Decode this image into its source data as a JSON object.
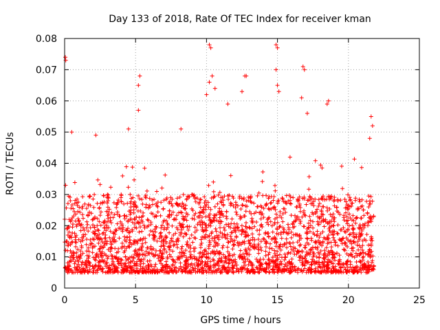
{
  "chart_data": {
    "type": "scatter",
    "title": "Day 133 of 2018, Rate Of TEC Index for receiver kman",
    "xlabel": "GPS time / hours",
    "ylabel": "ROTI / TECUs",
    "xlim": [
      0,
      25
    ],
    "ylim": [
      0,
      0.08
    ],
    "xticks": [
      "0",
      "5",
      "10",
      "15",
      "20",
      "25"
    ],
    "yticks": [
      "0",
      "0.01",
      "0.02",
      "0.03",
      "0.04",
      "0.05",
      "0.06",
      "0.07",
      "0.08"
    ],
    "marker": "plus",
    "series": [
      {
        "name": "ROTI",
        "color": "#ff0000",
        "time_range": [
          0,
          21.8
        ],
        "typical_range": [
          0.005,
          0.03
        ],
        "notable_points": [
          {
            "x": 0.05,
            "y": 0.074
          },
          {
            "x": 0.08,
            "y": 0.073
          },
          {
            "x": 0.5,
            "y": 0.05
          },
          {
            "x": 2.2,
            "y": 0.049
          },
          {
            "x": 4.5,
            "y": 0.051
          },
          {
            "x": 5.3,
            "y": 0.068
          },
          {
            "x": 5.2,
            "y": 0.065
          },
          {
            "x": 5.2,
            "y": 0.057
          },
          {
            "x": 8.2,
            "y": 0.051
          },
          {
            "x": 10.2,
            "y": 0.078
          },
          {
            "x": 10.3,
            "y": 0.077
          },
          {
            "x": 10.4,
            "y": 0.068
          },
          {
            "x": 10.2,
            "y": 0.066
          },
          {
            "x": 10.6,
            "y": 0.064
          },
          {
            "x": 10.0,
            "y": 0.062
          },
          {
            "x": 11.5,
            "y": 0.059
          },
          {
            "x": 12.5,
            "y": 0.063
          },
          {
            "x": 12.7,
            "y": 0.068
          },
          {
            "x": 12.8,
            "y": 0.068
          },
          {
            "x": 14.9,
            "y": 0.078
          },
          {
            "x": 15.0,
            "y": 0.077
          },
          {
            "x": 14.9,
            "y": 0.07
          },
          {
            "x": 15.0,
            "y": 0.065
          },
          {
            "x": 15.1,
            "y": 0.063
          },
          {
            "x": 16.8,
            "y": 0.071
          },
          {
            "x": 16.9,
            "y": 0.07
          },
          {
            "x": 16.7,
            "y": 0.061
          },
          {
            "x": 17.1,
            "y": 0.056
          },
          {
            "x": 18.6,
            "y": 0.06
          },
          {
            "x": 18.5,
            "y": 0.059
          },
          {
            "x": 21.6,
            "y": 0.055
          },
          {
            "x": 21.7,
            "y": 0.052
          },
          {
            "x": 21.5,
            "y": 0.048
          }
        ]
      }
    ]
  }
}
